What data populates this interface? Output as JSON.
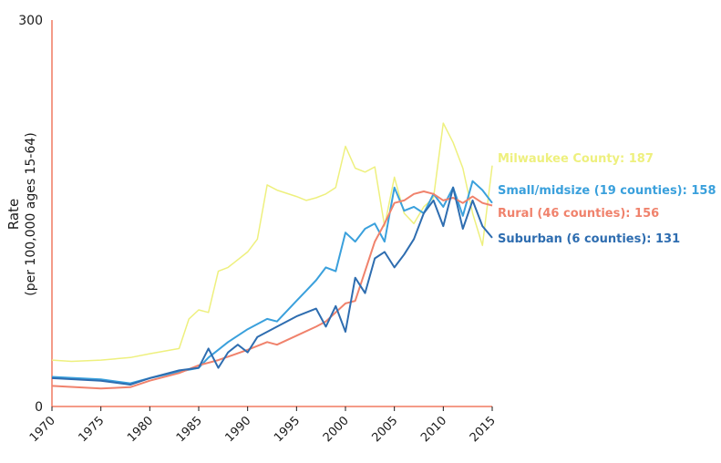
{
  "chart_data": {
    "type": "line",
    "ylabel": "Rate",
    "ylabel_sub": "(per 100,000 ages 15-64)",
    "xlim": [
      1970,
      2015
    ],
    "ylim": [
      0,
      300
    ],
    "y_ticks": [
      "0",
      "300"
    ],
    "x_ticks": [
      "1970",
      "1975",
      "1980",
      "1985",
      "1990",
      "1995",
      "2000",
      "2005",
      "2010",
      "2015"
    ],
    "grid": false,
    "legend": "end-of-line labels",
    "series": [
      {
        "name": "Milwaukee County: 187",
        "color": "#eef07e",
        "x": [
          1970,
          1972,
          1975,
          1978,
          1980,
          1983,
          1984,
          1985,
          1986,
          1987,
          1988,
          1990,
          1991,
          1992,
          1993,
          1995,
          1996,
          1997,
          1998,
          1999,
          2000,
          2001,
          2002,
          2003,
          2004,
          2005,
          2006,
          2007,
          2008,
          2009,
          2010,
          2011,
          2012,
          2013,
          2014,
          2015
        ],
        "y": [
          36,
          35,
          36,
          38,
          41,
          45,
          68,
          75,
          73,
          105,
          108,
          120,
          130,
          172,
          168,
          163,
          160,
          162,
          165,
          170,
          202,
          185,
          182,
          186,
          140,
          178,
          150,
          142,
          155,
          162,
          220,
          205,
          185,
          150,
          125,
          187
        ]
      },
      {
        "name": "Small/midsize (19 counties): 158",
        "color": "#3aa0dc",
        "x": [
          1970,
          1975,
          1978,
          1980,
          1983,
          1985,
          1986,
          1987,
          1988,
          1990,
          1992,
          1993,
          1995,
          1996,
          1997,
          1998,
          1999,
          2000,
          2001,
          2002,
          2003,
          2004,
          2005,
          2006,
          2007,
          2008,
          2009,
          2010,
          2011,
          2012,
          2013,
          2014,
          2015
        ],
        "y": [
          23,
          21,
          18,
          22,
          27,
          30,
          38,
          44,
          50,
          60,
          68,
          66,
          82,
          90,
          98,
          108,
          105,
          135,
          128,
          138,
          142,
          128,
          170,
          152,
          155,
          150,
          165,
          155,
          170,
          148,
          175,
          168,
          158
        ]
      },
      {
        "name": "Rural (46 counties): 156",
        "color": "#f0826c",
        "x": [
          1970,
          1975,
          1978,
          1980,
          1983,
          1985,
          1987,
          1990,
          1992,
          1993,
          1995,
          1997,
          1998,
          2000,
          2001,
          2002,
          2003,
          2004,
          2005,
          2006,
          2007,
          2008,
          2009,
          2010,
          2011,
          2012,
          2013,
          2014,
          2015
        ],
        "y": [
          16,
          14,
          15,
          20,
          26,
          32,
          36,
          44,
          50,
          48,
          55,
          62,
          66,
          80,
          82,
          105,
          128,
          142,
          158,
          160,
          165,
          167,
          165,
          160,
          162,
          158,
          163,
          158,
          156
        ]
      },
      {
        "name": "Suburban (6 counties): 131",
        "color": "#2e6db0",
        "x": [
          1970,
          1975,
          1978,
          1980,
          1983,
          1985,
          1986,
          1987,
          1988,
          1989,
          1990,
          1991,
          1993,
          1995,
          1997,
          1998,
          1999,
          2000,
          2001,
          2002,
          2003,
          2004,
          2005,
          2006,
          2007,
          2008,
          2009,
          2010,
          2011,
          2012,
          2013,
          2014,
          2015
        ],
        "y": [
          22,
          20,
          17,
          22,
          28,
          30,
          45,
          30,
          42,
          48,
          42,
          54,
          62,
          70,
          76,
          62,
          78,
          58,
          100,
          88,
          115,
          120,
          108,
          118,
          130,
          150,
          160,
          140,
          170,
          138,
          160,
          140,
          131
        ]
      }
    ]
  }
}
